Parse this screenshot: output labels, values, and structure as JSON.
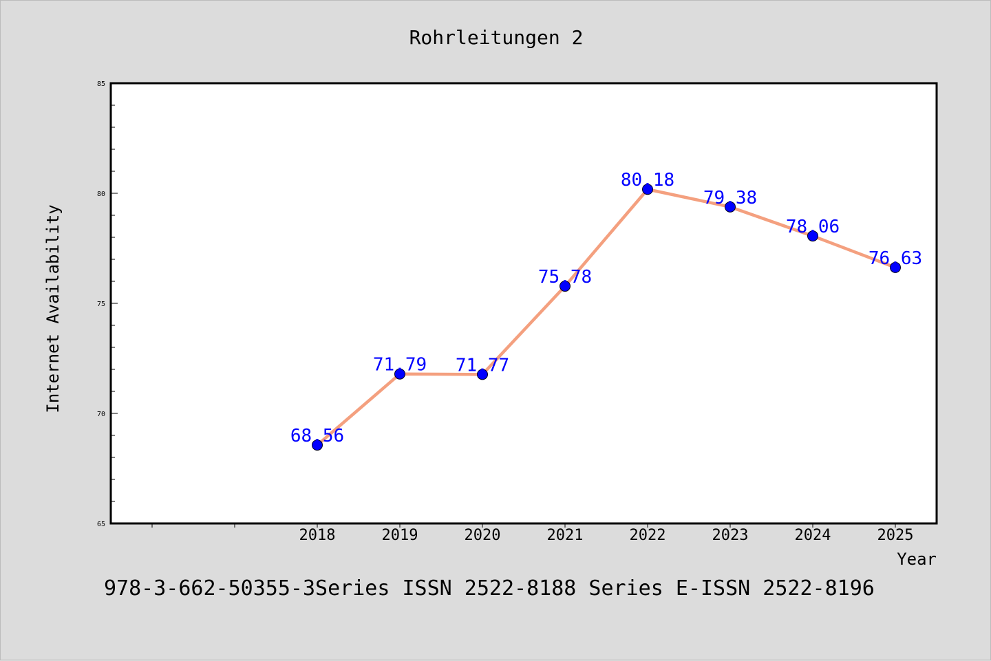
{
  "chart_data": {
    "type": "line",
    "title": "Rohrleitungen 2",
    "xlabel": "Year",
    "ylabel": "Internet Availability",
    "x": [
      "2018",
      "2019",
      "2020",
      "2021",
      "2022",
      "2023",
      "2024",
      "2025"
    ],
    "y": [
      68.56,
      71.79,
      71.77,
      75.78,
      80.18,
      79.38,
      78.06,
      76.63
    ],
    "data_labels": [
      "68.56",
      "71.79",
      "71.77",
      "75.78",
      "80.18",
      "79.38",
      "78.06",
      "76.63"
    ],
    "ylim": [
      65,
      85
    ],
    "y_ticks": [
      "65",
      "70",
      "75",
      "80",
      "85"
    ],
    "grid": false,
    "legend": "none",
    "colors": {
      "line": "#f4a07f",
      "marker": "#0000ff",
      "label": "#0000ff",
      "plot_background": "#ffffff",
      "page_background": "#dcdcdc"
    }
  },
  "footer": {
    "text": "978-3-662-50355-3Series ISSN 2522-8188 Series E-ISSN 2522-8196"
  }
}
